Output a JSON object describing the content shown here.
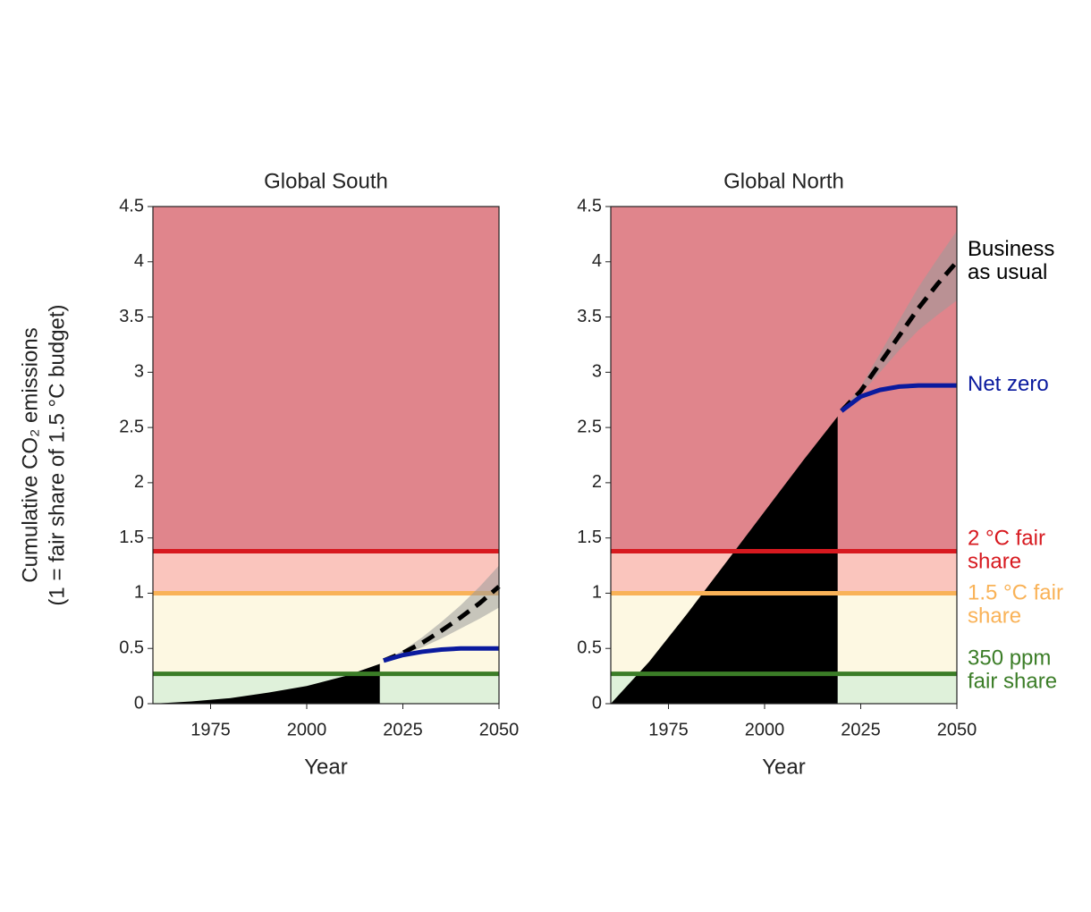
{
  "chart_data": [
    {
      "type": "area-projection",
      "title": "Global South",
      "xlabel": "Year",
      "ylabel": [
        "Cumulative CO₂ emissions",
        "(1 = fair share of 1.5 °C budget)"
      ],
      "xlim": [
        1960,
        2050
      ],
      "xticks": [
        1975,
        2000,
        2025,
        2050
      ],
      "ylim": [
        0,
        4.5
      ],
      "yticks": [
        0,
        0.5,
        1.0,
        1.5,
        2.0,
        2.5,
        3.0,
        3.5,
        4.0,
        4.5
      ],
      "zone_colors": [
        "#dff1da",
        "#fdf8e2",
        "#fac5bd",
        "#e0858c"
      ],
      "hlines": [
        {
          "value": 0.27,
          "color": "#3b7d27"
        },
        {
          "value": 1.0,
          "color": "#f9b257"
        },
        {
          "value": 1.38,
          "color": "#d7191f"
        }
      ],
      "series": [
        {
          "style": "area",
          "color": "#000000",
          "x": [
            1960,
            1970,
            1980,
            1990,
            2000,
            2010,
            2019
          ],
          "values": [
            0,
            0.02,
            0.05,
            0.1,
            0.16,
            0.25,
            0.36
          ]
        },
        {
          "style": "dashed",
          "color": "#000000",
          "band_color": "#9a9a9a",
          "x": [
            2020,
            2025,
            2030,
            2035,
            2040,
            2045,
            2050
          ],
          "values": [
            0.39,
            0.46,
            0.55,
            0.66,
            0.78,
            0.91,
            1.06
          ],
          "low": [
            0.39,
            0.44,
            0.51,
            0.59,
            0.68,
            0.77,
            0.87
          ],
          "high": [
            0.39,
            0.48,
            0.6,
            0.74,
            0.89,
            1.06,
            1.25
          ]
        },
        {
          "style": "solid",
          "color": "#0a1a9e",
          "x": [
            2020,
            2025,
            2030,
            2035,
            2040,
            2045,
            2050
          ],
          "values": [
            0.39,
            0.44,
            0.47,
            0.49,
            0.5,
            0.5,
            0.5
          ]
        }
      ]
    },
    {
      "type": "area-projection",
      "title": "Global North",
      "xlabel": "Year",
      "xlim": [
        1960,
        2050
      ],
      "xticks": [
        1975,
        2000,
        2025,
        2050
      ],
      "ylim": [
        0,
        4.5
      ],
      "yticks": [
        0,
        0.5,
        1.0,
        1.5,
        2.0,
        2.5,
        3.0,
        3.5,
        4.0,
        4.5
      ],
      "zone_colors": [
        "#dff1da",
        "#fdf8e2",
        "#fac5bd",
        "#e0858c"
      ],
      "hlines": [
        {
          "name": "350 ppm fair share",
          "value": 0.27,
          "color": "#3b7d27"
        },
        {
          "name": "1.5 °C fair share",
          "value": 1.0,
          "color": "#f9b257"
        },
        {
          "name": "2 °C fair share",
          "value": 1.38,
          "color": "#d7191f"
        }
      ],
      "series": [
        {
          "style": "area",
          "color": "#000000",
          "x": [
            1960,
            1970,
            1980,
            1990,
            2000,
            2010,
            2019
          ],
          "values": [
            0,
            0.38,
            0.82,
            1.28,
            1.74,
            2.2,
            2.6
          ]
        },
        {
          "name": "Business as usual",
          "style": "dashed",
          "color": "#000000",
          "band_color": "#9a9a9a",
          "x": [
            2020,
            2025,
            2030,
            2035,
            2040,
            2045,
            2050
          ],
          "values": [
            2.65,
            2.83,
            3.08,
            3.33,
            3.58,
            3.8,
            4.0
          ],
          "low": [
            2.65,
            2.8,
            3.0,
            3.2,
            3.38,
            3.52,
            3.65
          ],
          "high": [
            2.65,
            2.87,
            3.17,
            3.47,
            3.77,
            4.03,
            4.28
          ]
        },
        {
          "name": "Net zero",
          "style": "solid",
          "color": "#0a1a9e",
          "x": [
            2020,
            2025,
            2030,
            2035,
            2040,
            2045,
            2050
          ],
          "values": [
            2.65,
            2.78,
            2.84,
            2.87,
            2.88,
            2.88,
            2.88
          ]
        }
      ]
    }
  ]
}
